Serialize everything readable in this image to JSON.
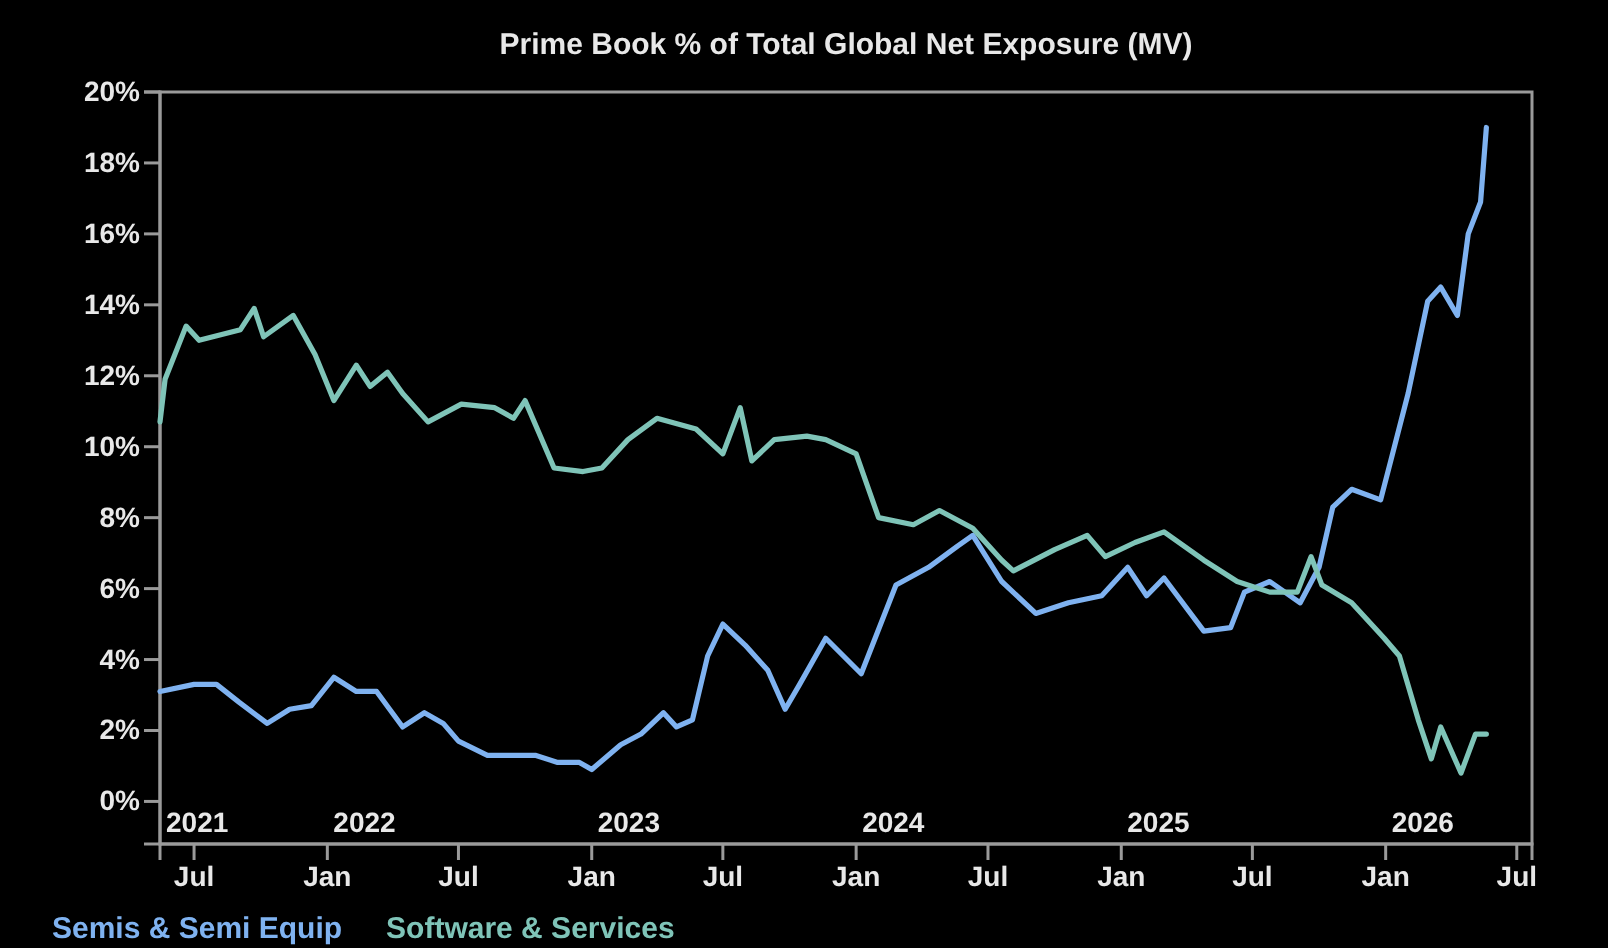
{
  "chart_data": {
    "type": "line",
    "title": "Prime Book % of Total Global Net Exposure (MV)",
    "xlim": [
      "2021-05-15",
      "2026-07-22"
    ],
    "ylim": [
      -1.2,
      20
    ],
    "yticks": [
      {
        "value": 0,
        "label": "0%"
      },
      {
        "value": 2,
        "label": "2%"
      },
      {
        "value": 4,
        "label": "4%"
      },
      {
        "value": 6,
        "label": "6%"
      },
      {
        "value": 8,
        "label": "8%"
      },
      {
        "value": 10,
        "label": "10%"
      },
      {
        "value": 12,
        "label": "12%"
      },
      {
        "value": 14,
        "label": "14%"
      },
      {
        "value": 16,
        "label": "16%"
      },
      {
        "value": 18,
        "label": "18%"
      },
      {
        "value": 20,
        "label": "20%"
      }
    ],
    "xticks": [
      {
        "value": "2021-07-01",
        "label": "Jul"
      },
      {
        "value": "2022-01-01",
        "label": "Jan"
      },
      {
        "value": "2022-07-01",
        "label": "Jul"
      },
      {
        "value": "2023-01-01",
        "label": "Jan"
      },
      {
        "value": "2023-07-01",
        "label": "Jul"
      },
      {
        "value": "2024-01-01",
        "label": "Jan"
      },
      {
        "value": "2024-07-01",
        "label": "Jul"
      },
      {
        "value": "2025-01-01",
        "label": "Jan"
      },
      {
        "value": "2025-07-01",
        "label": "Jul"
      },
      {
        "value": "2026-01-01",
        "label": "Jan"
      },
      {
        "value": "2026-07-01",
        "label": "Jul"
      }
    ],
    "annotations": [
      "2021",
      "2022",
      "2023",
      "2024",
      "2025",
      "2026"
    ],
    "grid": false,
    "legend": "bottom",
    "line_style": "solid",
    "series": [
      {
        "name": "Semis & Semi Equip",
        "color": "#7fb2f0",
        "x": [
          "2021-05-15",
          "2021-07-01",
          "2021-08-01",
          "2021-09-01",
          "2021-10-10",
          "2021-11-10",
          "2021-12-10",
          "2022-01-10",
          "2022-02-10",
          "2022-03-10",
          "2022-04-15",
          "2022-05-15",
          "2022-06-10",
          "2022-07-01",
          "2022-08-10",
          "2022-09-15",
          "2022-10-15",
          "2022-11-15",
          "2022-12-15",
          "2023-01-01",
          "2023-02-10",
          "2023-03-10",
          "2023-04-10",
          "2023-04-28",
          "2023-05-20",
          "2023-06-10",
          "2023-07-01",
          "2023-08-01",
          "2023-09-01",
          "2023-09-25",
          "2023-10-15",
          "2023-11-20",
          "2024-01-08",
          "2024-02-25",
          "2024-04-10",
          "2024-05-20",
          "2024-06-10",
          "2024-07-20",
          "2024-09-05",
          "2024-10-20",
          "2024-12-05",
          "2025-01-10",
          "2025-02-05",
          "2025-03-01",
          "2025-04-25",
          "2025-06-01",
          "2025-06-20",
          "2025-07-25",
          "2025-09-05",
          "2025-10-01",
          "2025-10-20",
          "2025-11-15",
          "2025-12-25",
          "2026-01-08",
          "2026-02-01",
          "2026-02-28",
          "2026-03-18",
          "2026-04-10",
          "2026-04-25",
          "2026-05-12",
          "2026-05-20"
        ],
        "values": [
          3.1,
          3.3,
          3.3,
          2.8,
          2.2,
          2.6,
          2.7,
          3.5,
          3.1,
          3.1,
          2.1,
          2.5,
          2.2,
          1.7,
          1.3,
          1.3,
          1.3,
          1.1,
          1.1,
          0.9,
          1.6,
          1.9,
          2.5,
          2.1,
          2.3,
          4.1,
          5.0,
          4.4,
          3.7,
          2.6,
          3.3,
          4.6,
          3.6,
          6.1,
          6.6,
          7.2,
          7.5,
          6.2,
          5.3,
          5.6,
          5.8,
          6.6,
          5.8,
          6.3,
          4.8,
          4.9,
          5.9,
          6.2,
          5.6,
          6.6,
          8.3,
          8.8,
          8.5,
          9.6,
          11.5,
          14.1,
          14.5,
          13.7,
          16.0,
          16.9,
          19.0
        ]
      },
      {
        "name": "Software & Services",
        "color": "#7fc4b8",
        "x": [
          "2021-05-15",
          "2021-05-22",
          "2021-06-20",
          "2021-07-08",
          "2021-09-03",
          "2021-09-22",
          "2021-10-05",
          "2021-11-15",
          "2021-12-15",
          "2022-01-10",
          "2022-02-10",
          "2022-03-01",
          "2022-03-25",
          "2022-04-15",
          "2022-05-20",
          "2022-07-05",
          "2022-08-20",
          "2022-09-15",
          "2022-10-01",
          "2022-11-10",
          "2022-12-20",
          "2023-01-15",
          "2023-02-20",
          "2023-04-01",
          "2023-05-25",
          "2023-07-01",
          "2023-07-25",
          "2023-08-10",
          "2023-09-10",
          "2023-10-25",
          "2023-11-20",
          "2024-01-01",
          "2024-02-01",
          "2024-03-20",
          "2024-04-25",
          "2024-06-10",
          "2024-07-20",
          "2024-08-05",
          "2024-10-01",
          "2024-11-15",
          "2024-12-10",
          "2025-01-20",
          "2025-03-01",
          "2025-04-25",
          "2025-06-10",
          "2025-07-25",
          "2025-09-01",
          "2025-09-20",
          "2025-10-05",
          "2025-11-15",
          "2025-12-30",
          "2026-01-20",
          "2026-02-15",
          "2026-03-05",
          "2026-03-18",
          "2026-04-15",
          "2026-05-05",
          "2026-05-20"
        ],
        "values": [
          10.7,
          11.9,
          13.4,
          13.0,
          13.3,
          13.9,
          13.1,
          13.7,
          12.6,
          11.3,
          12.3,
          11.7,
          12.1,
          11.5,
          10.7,
          11.2,
          11.1,
          10.8,
          11.3,
          9.4,
          9.3,
          9.4,
          10.2,
          10.8,
          10.5,
          9.8,
          11.1,
          9.6,
          10.2,
          10.3,
          10.2,
          9.8,
          8.0,
          7.8,
          8.2,
          7.7,
          6.8,
          6.5,
          7.1,
          7.5,
          6.9,
          7.3,
          7.6,
          6.8,
          6.2,
          5.9,
          5.9,
          6.9,
          6.1,
          5.6,
          4.6,
          4.1,
          2.3,
          1.2,
          2.1,
          0.8,
          1.9,
          1.9
        ]
      }
    ]
  }
}
